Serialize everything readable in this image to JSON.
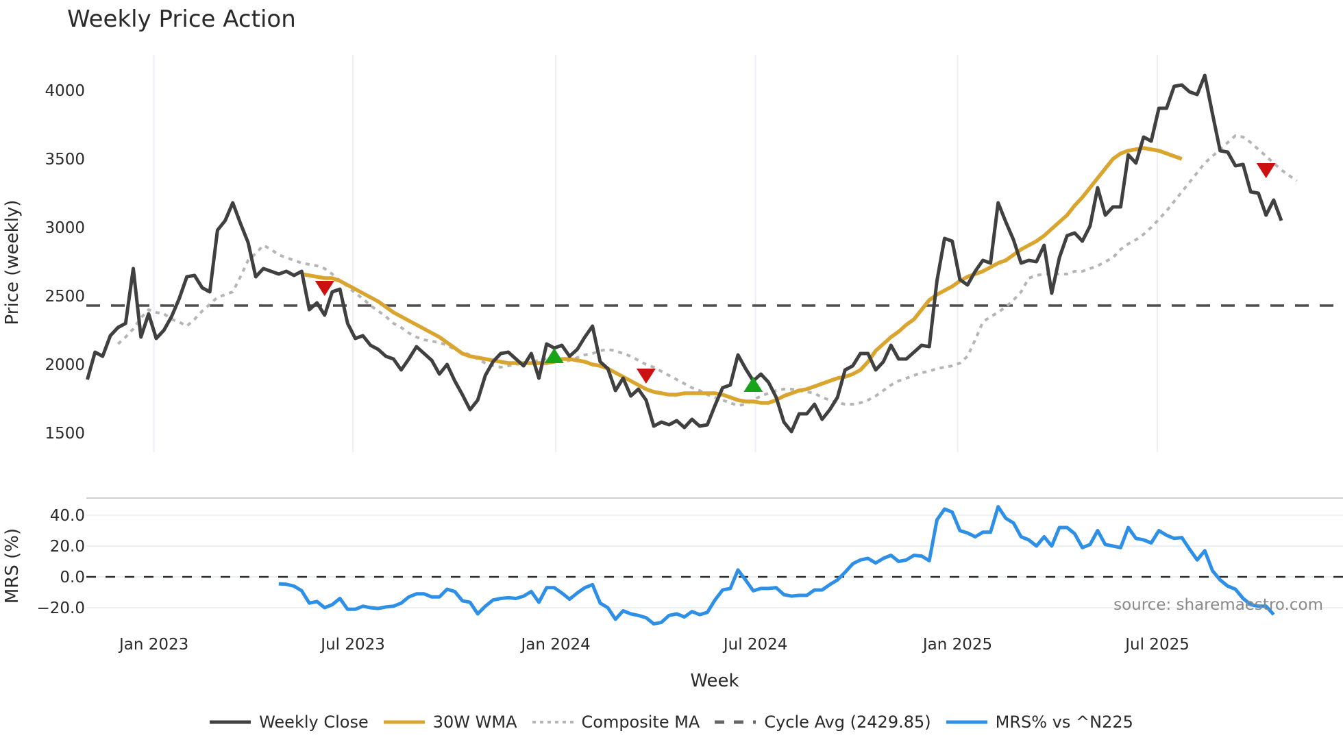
{
  "title": "Weekly Price Action",
  "source_note": "source: sharemaestro.com",
  "colors": {
    "close": "#404040",
    "wma": "#d9a52e",
    "composite": "#b5b5b5",
    "cycle": "#4d4d4d",
    "mrs": "#2d8fe6",
    "buy": "#19a319",
    "sell": "#cc1111",
    "grid": "#eceff5"
  },
  "legend": [
    {
      "label": "Weekly Close",
      "style": "solid",
      "color": "#404040"
    },
    {
      "label": "30W WMA",
      "style": "solid",
      "color": "#d9a52e"
    },
    {
      "label": "Composite MA",
      "style": "dotted",
      "color": "#b5b5b5"
    },
    {
      "label": "Cycle Avg (2429.85)",
      "style": "dashed",
      "color": "#666666"
    },
    {
      "label": "MRS% vs ^N225",
      "style": "solid",
      "color": "#2d8fe6"
    }
  ],
  "chart_data": [
    {
      "type": "line",
      "title": "Weekly Price Action",
      "xlabel": "Week",
      "ylabel": "Price (weekly)",
      "ylim": [
        1300,
        4250
      ],
      "yticks": [
        1500,
        2000,
        2500,
        3000,
        3500,
        4000
      ],
      "xtick_labels": [
        "Jan 2023",
        "Jul 2023",
        "Jan 2024",
        "Jul 2024",
        "Jan 2025",
        "Jul 2025"
      ],
      "xtick_week_index": [
        8.7,
        34.7,
        61.2,
        87.3,
        113.7,
        139.8
      ],
      "x_start": "early Nov 2022",
      "x_end": "late Oct 2025",
      "grid": true,
      "cycle_avg": 2429.85,
      "series": [
        {
          "name": "Weekly Close",
          "start_index": 0,
          "values": [
            1890,
            2090,
            2060,
            2210,
            2270,
            2300,
            2700,
            2200,
            2370,
            2190,
            2250,
            2350,
            2480,
            2640,
            2650,
            2560,
            2530,
            2980,
            3050,
            3180,
            3030,
            2890,
            2640,
            2700,
            2680,
            2660,
            2680,
            2650,
            2680,
            2400,
            2450,
            2360,
            2530,
            2550,
            2300,
            2190,
            2210,
            2140,
            2110,
            2060,
            2040,
            1960,
            2040,
            2130,
            2080,
            2030,
            1930,
            2000,
            1880,
            1780,
            1670,
            1740,
            1920,
            2020,
            2080,
            2090,
            2040,
            1990,
            2080,
            1900,
            2150,
            2120,
            2140,
            2060,
            2110,
            2200,
            2280,
            2020,
            1970,
            1810,
            1900,
            1770,
            1820,
            1740,
            1550,
            1580,
            1560,
            1590,
            1540,
            1600,
            1550,
            1560,
            1700,
            1830,
            1850,
            2070,
            1970,
            1880,
            1930,
            1870,
            1760,
            1580,
            1510,
            1640,
            1640,
            1710,
            1600,
            1670,
            1760,
            1960,
            1990,
            2080,
            2080,
            1960,
            2020,
            2140,
            2040,
            2040,
            2090,
            2140,
            2130,
            2610,
            2920,
            2900,
            2620,
            2580,
            2680,
            2760,
            2740,
            3180,
            3040,
            2910,
            2740,
            2760,
            2750,
            2870,
            2520,
            2780,
            2940,
            2960,
            2900,
            3010,
            3290,
            3090,
            3150,
            3150,
            3530,
            3470,
            3660,
            3630,
            3870,
            3870,
            4030,
            4040,
            3990,
            3970,
            4110,
            3830,
            3560,
            3550,
            3450,
            3460,
            3260,
            3250,
            3090,
            3200,
            3050
          ]
        },
        {
          "name": "30W WMA",
          "start_index": 28,
          "values": [
            2660,
            2650,
            2640,
            2630,
            2630,
            2610,
            2580,
            2550,
            2520,
            2490,
            2460,
            2420,
            2380,
            2350,
            2320,
            2290,
            2260,
            2230,
            2200,
            2160,
            2120,
            2080,
            2060,
            2050,
            2040,
            2030,
            2020,
            2010,
            2010,
            2010,
            2010,
            2010,
            2010,
            2020,
            2040,
            2040,
            2030,
            2020,
            2000,
            1990,
            1970,
            1940,
            1910,
            1880,
            1850,
            1820,
            1800,
            1790,
            1780,
            1780,
            1790,
            1790,
            1790,
            1790,
            1790,
            1780,
            1760,
            1740,
            1730,
            1730,
            1720,
            1720,
            1740,
            1770,
            1790,
            1810,
            1820,
            1840,
            1860,
            1880,
            1900,
            1910,
            1930,
            1960,
            2020,
            2100,
            2150,
            2200,
            2240,
            2290,
            2330,
            2400,
            2470,
            2510,
            2540,
            2570,
            2610,
            2640,
            2660,
            2680,
            2710,
            2740,
            2760,
            2800,
            2840,
            2870,
            2900,
            2940,
            2990,
            3040,
            3090,
            3160,
            3220,
            3290,
            3360,
            3430,
            3500,
            3540,
            3560,
            3570,
            3580,
            3570,
            3560,
            3540,
            3520,
            3500
          ]
        },
        {
          "name": "Composite MA",
          "start_index": 4,
          "values": [
            2150,
            2200,
            2260,
            2340,
            2400,
            2380,
            2370,
            2330,
            2310,
            2280,
            2330,
            2390,
            2440,
            2490,
            2510,
            2530,
            2640,
            2760,
            2810,
            2870,
            2840,
            2800,
            2780,
            2760,
            2740,
            2730,
            2720,
            2700,
            2660,
            2610,
            2570,
            2520,
            2480,
            2430,
            2390,
            2350,
            2300,
            2270,
            2230,
            2200,
            2180,
            2170,
            2160,
            2140,
            2110,
            2090,
            2070,
            2040,
            2010,
            1990,
            1980,
            1990,
            2000,
            2010,
            2020,
            2030,
            2040,
            2060,
            2020,
            2030,
            2050,
            2070,
            2080,
            2100,
            2110,
            2100,
            2080,
            2060,
            2030,
            2000,
            1980,
            1950,
            1920,
            1890,
            1860,
            1830,
            1810,
            1780,
            1760,
            1740,
            1720,
            1700,
            1710,
            1740,
            1770,
            1790,
            1810,
            1820,
            1820,
            1810,
            1800,
            1790,
            1760,
            1740,
            1720,
            1710,
            1710,
            1720,
            1740,
            1770,
            1810,
            1850,
            1880,
            1900,
            1920,
            1940,
            1950,
            1970,
            1980,
            1990,
            2010,
            2060,
            2180,
            2310,
            2350,
            2380,
            2420,
            2470,
            2530,
            2630,
            2650,
            2660,
            2660,
            2660,
            2660,
            2680,
            2680,
            2700,
            2720,
            2750,
            2780,
            2840,
            2880,
            2910,
            2950,
            3000,
            3060,
            3120,
            3190,
            3260,
            3330,
            3400,
            3470,
            3520,
            3570,
            3620,
            3670,
            3660,
            3620,
            3570,
            3520,
            3470,
            3420,
            3380,
            3340
          ]
        }
      ],
      "markers": [
        {
          "type": "sell",
          "week_index": 31,
          "value": 2560
        },
        {
          "type": "buy",
          "week_index": 61,
          "value": 2060
        },
        {
          "type": "sell",
          "week_index": 73,
          "value": 1920
        },
        {
          "type": "buy",
          "week_index": 87,
          "value": 1850
        },
        {
          "type": "sell",
          "week_index": 154,
          "value": 3420
        }
      ]
    },
    {
      "type": "line",
      "title": "",
      "xlabel": "Week",
      "ylabel": "MRS (%)",
      "ylim": [
        -29,
        51
      ],
      "yticks": [
        -20.0,
        0.0,
        20.0,
        40.0
      ],
      "ytick_labels": [
        "−20.0",
        "0.0",
        "20.0",
        "40.0"
      ],
      "zero_line": 0.0,
      "series": [
        {
          "name": "MRS% vs ^N225",
          "start_index": 25,
          "values": [
            -4.5,
            -4.8,
            -6,
            -9,
            -17,
            -16,
            -20,
            -18,
            -14,
            -21,
            -21,
            -19,
            -20,
            -20.5,
            -19.5,
            -19,
            -17,
            -13,
            -11,
            -11,
            -13,
            -13,
            -8,
            -9.5,
            -15.5,
            -16.5,
            -24,
            -19,
            -15,
            -14,
            -13.5,
            -14,
            -12.5,
            -9.5,
            -16.5,
            -7,
            -7,
            -10.5,
            -14.5,
            -10.5,
            -7,
            -5,
            -17,
            -20,
            -27.5,
            -22,
            -24,
            -25,
            -26.5,
            -30.5,
            -29.5,
            -25,
            -24,
            -26,
            -22.5,
            -24.5,
            -23,
            -15,
            -8.5,
            -7.5,
            4.5,
            -2,
            -9,
            -7.5,
            -7.5,
            -7,
            -11.5,
            -12.5,
            -12,
            -12,
            -8.5,
            -8.5,
            -5,
            -2,
            3,
            8.5,
            11,
            12,
            9,
            12,
            14,
            10,
            11,
            14,
            13.5,
            10.5,
            37,
            44,
            42,
            30,
            28.5,
            26,
            29,
            29,
            45.5,
            38,
            35,
            26,
            24,
            20,
            26,
            20,
            32,
            32,
            28,
            19,
            21,
            30,
            21,
            20,
            19,
            32,
            25,
            24,
            22,
            30,
            27,
            25,
            25.5,
            18,
            11,
            17,
            4,
            -2,
            -6,
            -8,
            -14,
            -18,
            -19,
            -19,
            -24.5
          ]
        }
      ]
    }
  ]
}
